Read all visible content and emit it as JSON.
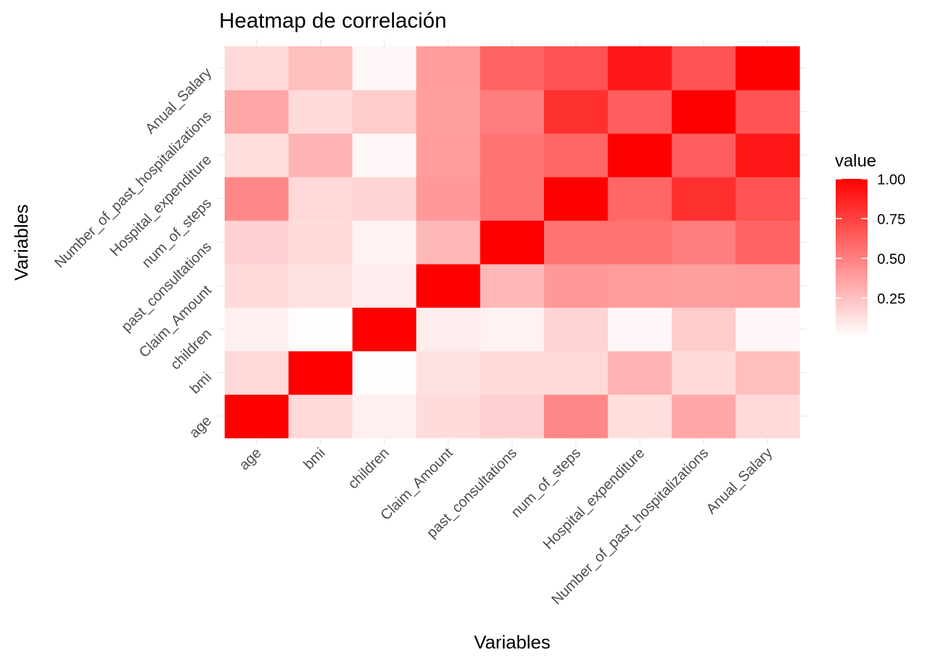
{
  "chart_data": {
    "type": "heatmap",
    "title": "Heatmap de correlación",
    "xlabel": "Variables",
    "ylabel": "Variables",
    "x": [
      "age",
      "bmi",
      "children",
      "Claim_Amount",
      "past_consultations",
      "num_of_steps",
      "Hospital_expenditure",
      "Number_of_past_hospitalizations",
      "Anual_Salary"
    ],
    "y": [
      "age",
      "bmi",
      "children",
      "Claim_Amount",
      "past_consultations",
      "num_of_steps",
      "Hospital_expenditure",
      "Number_of_past_hospitalizations",
      "Anual_Salary"
    ],
    "values": [
      [
        1.0,
        0.15,
        0.06,
        0.14,
        0.18,
        0.47,
        0.13,
        0.35,
        0.15
      ],
      [
        0.15,
        1.0,
        0.01,
        0.12,
        0.14,
        0.15,
        0.3,
        0.14,
        0.25
      ],
      [
        0.06,
        0.01,
        1.0,
        0.07,
        0.05,
        0.17,
        0.03,
        0.2,
        0.03
      ],
      [
        0.14,
        0.12,
        0.07,
        1.0,
        0.28,
        0.4,
        0.39,
        0.38,
        0.39
      ],
      [
        0.18,
        0.14,
        0.05,
        0.28,
        1.0,
        0.55,
        0.55,
        0.51,
        0.61
      ],
      [
        0.47,
        0.15,
        0.17,
        0.4,
        0.55,
        1.0,
        0.6,
        0.81,
        0.68
      ],
      [
        0.13,
        0.3,
        0.03,
        0.39,
        0.55,
        0.6,
        1.0,
        0.63,
        0.91
      ],
      [
        0.35,
        0.14,
        0.2,
        0.38,
        0.51,
        0.81,
        0.63,
        1.0,
        0.67
      ],
      [
        0.15,
        0.25,
        0.03,
        0.39,
        0.61,
        0.68,
        0.91,
        0.67,
        1.0
      ]
    ],
    "color_scale": {
      "low": "#ffffff",
      "high": "#ff0000",
      "range": [
        0.0,
        1.0
      ]
    },
    "legend": {
      "title": "value",
      "ticks": [
        1.0,
        0.75,
        0.5,
        0.25
      ],
      "tick_labels": [
        "1.00",
        "0.75",
        "0.50",
        "0.25"
      ],
      "placement": "right"
    },
    "grid": true
  }
}
